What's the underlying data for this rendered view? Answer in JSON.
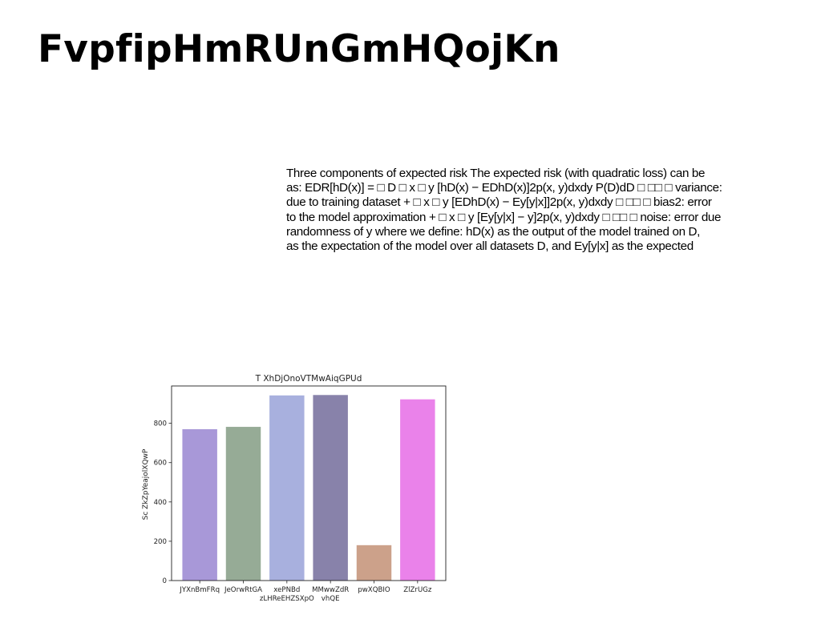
{
  "slide": {
    "title": "FvpfipHmRUnGmHQojKn",
    "body_lines": [
      "Three components of expected risk The expected risk (with quadratic loss) can be",
      "as: EDR[hD(x)] = □ D □ x □ y [hD(x) − EDhD(x)]2p(x, y)dxdy P(D)dD □ □□ □ variance:",
      "due to training dataset + □ x □ y [EDhD(x) − Ey[y|x]]2p(x, y)dxdy □ □□ □ bias2: error",
      "to the model approximation + □ x □ y [Ey[y|x] − y]2p(x, y)dxdy □ □□ □ noise: error due",
      "randomness of y where we define: hD(x) as the output of the model trained on D,",
      "as the expectation of the model over all datasets D, and Ey[y|x] as the expected"
    ]
  },
  "chart_data": {
    "type": "bar",
    "title": "T XhDjOnoVTMwAiqGPUd",
    "xlabel": "",
    "ylabel": "Sc ZkZpYeajolXQwP",
    "categories": [
      "JYXnBmFRq",
      "JeOrwRtGA",
      "xePNBd\nzLHReEHZSXpO",
      "MMwwZdR\nvhQE",
      "pwXQBIO",
      "ZlZrUGz"
    ],
    "values": [
      770,
      782,
      942,
      944,
      180,
      922
    ],
    "colors": [
      "#a898d8",
      "#96ab96",
      "#a8b0de",
      "#8882aa",
      "#cca18a",
      "#ea82ea"
    ],
    "ylim": [
      0,
      990
    ],
    "yticks": [
      0,
      200,
      400,
      600,
      800
    ],
    "grid": false
  }
}
